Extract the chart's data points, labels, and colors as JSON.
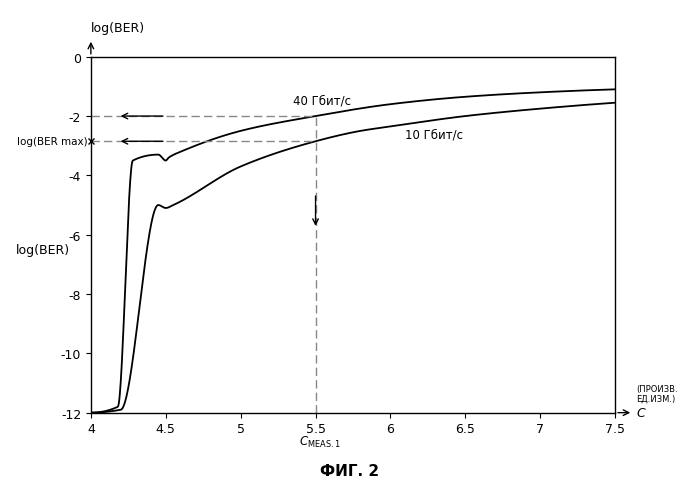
{
  "title": "ФИГ. 2",
  "xlim": [
    4.0,
    7.5
  ],
  "ylim": [
    -12,
    0
  ],
  "xticks": [
    4.0,
    4.5,
    5.0,
    5.5,
    6.0,
    6.5,
    7.0,
    7.5
  ],
  "xticklabels": [
    "4",
    "4.5",
    "5",
    "5.5",
    "6",
    "6.5",
    "7",
    "7.5"
  ],
  "yticks": [
    0,
    -2,
    -4,
    -6,
    -8,
    -10,
    -12
  ],
  "yticklabels": [
    "0",
    "-2",
    "-4",
    "-6",
    "-8",
    "-10",
    "-12"
  ],
  "label_top": "log(BER)",
  "label_left_mid": "log(BER)",
  "label_40": "40 Гбит/с",
  "label_10": "10 Гбит/с",
  "label_cmeas": "C",
  "label_cmeas_sub": "MEAS.1",
  "label_ber_max": "log(BER max)",
  "label_c_axis": "C",
  "label_c_units": "(ПРОИЗВ.\nЕД.ИЗМ.)",
  "c_meas": 5.5,
  "ber_ref_40": -2.0,
  "ber_ref_10": -2.85,
  "bg_color": "#ffffff",
  "line_color": "#000000",
  "dashed_color": "#888888",
  "curve40_x": [
    4.0,
    4.18,
    4.28,
    4.45,
    4.5,
    4.52,
    4.6,
    5.0,
    5.5,
    6.0,
    6.5,
    7.0,
    7.5
  ],
  "curve40_y": [
    -12.0,
    -11.8,
    -3.5,
    -3.3,
    -3.5,
    -3.4,
    -3.2,
    -2.5,
    -2.0,
    -1.6,
    -1.35,
    -1.2,
    -1.1
  ],
  "curve10_x": [
    4.0,
    4.2,
    4.45,
    4.5,
    4.55,
    5.0,
    5.5,
    5.8,
    6.0,
    6.5,
    7.0,
    7.5
  ],
  "curve10_y": [
    -12.0,
    -11.9,
    -5.0,
    -5.1,
    -5.0,
    -3.7,
    -2.85,
    -2.5,
    -2.35,
    -2.0,
    -1.75,
    -1.55
  ]
}
